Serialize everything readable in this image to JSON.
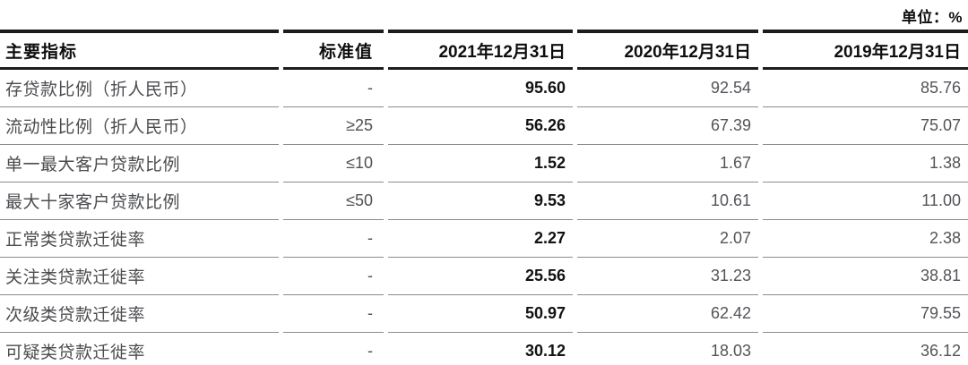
{
  "unit_label": "单位：%",
  "table": {
    "columns": [
      "主要指标",
      "标准值",
      "2021年12月31日",
      "2020年12月31日",
      "2019年12月31日"
    ],
    "rows": [
      {
        "indicator": "存贷款比例（折人民币）",
        "standard": "-",
        "y2021": "95.60",
        "y2020": "92.54",
        "y2019": "85.76"
      },
      {
        "indicator": "流动性比例（折人民币）",
        "standard": "≥25",
        "y2021": "56.26",
        "y2020": "67.39",
        "y2019": "75.07"
      },
      {
        "indicator": "单一最大客户贷款比例",
        "standard": "≤10",
        "y2021": "1.52",
        "y2020": "1.67",
        "y2019": "1.38"
      },
      {
        "indicator": "最大十家客户贷款比例",
        "standard": "≤50",
        "y2021": "9.53",
        "y2020": "10.61",
        "y2019": "11.00"
      },
      {
        "indicator": "正常类贷款迁徙率",
        "standard": "-",
        "y2021": "2.27",
        "y2020": "2.07",
        "y2019": "2.38"
      },
      {
        "indicator": "关注类贷款迁徙率",
        "standard": "-",
        "y2021": "25.56",
        "y2020": "31.23",
        "y2019": "38.81"
      },
      {
        "indicator": "次级类贷款迁徙率",
        "standard": "-",
        "y2021": "50.97",
        "y2020": "62.42",
        "y2019": "79.55"
      },
      {
        "indicator": "可疑类贷款迁徙率",
        "standard": "-",
        "y2021": "30.12",
        "y2020": "18.03",
        "y2019": "36.12"
      }
    ]
  }
}
